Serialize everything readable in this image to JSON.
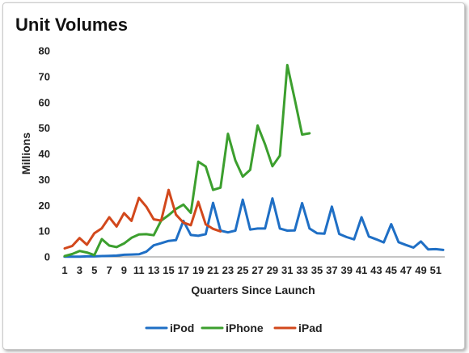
{
  "chart_data": {
    "type": "line",
    "title": "Unit Volumes",
    "xlabel": "Quarters Since Launch",
    "ylabel": "Millions",
    "ylim": [
      0,
      80
    ],
    "yticks": [
      0,
      10,
      20,
      30,
      40,
      50,
      60,
      70,
      80
    ],
    "xlim": [
      1,
      52
    ],
    "xtick_labels": [
      "1",
      "3",
      "5",
      "7",
      "9",
      "11",
      "13",
      "15",
      "17",
      "19",
      "21",
      "23",
      "25",
      "27",
      "29",
      "31",
      "33",
      "35",
      "37",
      "39",
      "41",
      "43",
      "45",
      "47",
      "49",
      "51"
    ],
    "grid": false,
    "legend_position": "bottom",
    "series": [
      {
        "name": "iPod",
        "color": "#1f6fc5",
        "x": [
          1,
          2,
          3,
          4,
          5,
          6,
          7,
          8,
          9,
          10,
          11,
          12,
          13,
          14,
          15,
          16,
          17,
          18,
          19,
          20,
          21,
          22,
          23,
          24,
          25,
          26,
          27,
          28,
          29,
          30,
          31,
          32,
          33,
          34,
          35,
          36,
          37,
          38,
          39,
          40,
          41,
          42,
          43,
          44,
          45,
          46,
          47,
          48,
          49,
          50,
          51,
          52
        ],
        "values": [
          0.1,
          0.1,
          0.1,
          0.2,
          0.2,
          0.3,
          0.4,
          0.5,
          0.8,
          0.9,
          1.0,
          2.0,
          4.5,
          5.3,
          6.2,
          6.5,
          14.0,
          8.5,
          8.2,
          8.8,
          21.0,
          10.2,
          9.5,
          10.2,
          22.2,
          10.6,
          11.0,
          11.0,
          22.7,
          11.0,
          10.2,
          10.3,
          20.9,
          11.0,
          9.2,
          9.0,
          19.5,
          8.9,
          7.7,
          6.8,
          15.4,
          7.9,
          6.8,
          5.6,
          12.7,
          5.7,
          4.6,
          3.6,
          6.0,
          2.9,
          3.0,
          2.7
        ]
      },
      {
        "name": "iPhone",
        "color": "#3c9f2e",
        "x": [
          1,
          2,
          3,
          4,
          5,
          6,
          7,
          8,
          9,
          10,
          11,
          12,
          13,
          14,
          15,
          16,
          17,
          18,
          19,
          20,
          21,
          22,
          23,
          24,
          25,
          26,
          27,
          28,
          29,
          30,
          31,
          32,
          33,
          34
        ],
        "values": [
          0.3,
          1.1,
          2.3,
          1.7,
          0.7,
          6.9,
          4.4,
          3.8,
          5.2,
          7.4,
          8.7,
          8.8,
          8.4,
          14.1,
          16.2,
          18.6,
          20.3,
          17.1,
          37.0,
          35.1,
          26.0,
          26.9,
          47.8,
          37.4,
          31.2,
          33.8,
          51.0,
          43.7,
          35.2,
          39.3,
          74.5,
          61.2,
          47.5,
          48.0
        ]
      },
      {
        "name": "iPad",
        "color": "#d2481c",
        "x": [
          1,
          2,
          3,
          4,
          5,
          6,
          7,
          8,
          9,
          10,
          11,
          12,
          13,
          14,
          15,
          16,
          17,
          18,
          19,
          20,
          21,
          22
        ],
        "values": [
          3.3,
          4.2,
          7.3,
          4.7,
          9.2,
          11.1,
          15.4,
          11.8,
          17.0,
          14.0,
          22.9,
          19.5,
          14.6,
          14.1,
          26.0,
          16.4,
          13.3,
          12.3,
          21.4,
          12.6,
          10.9,
          9.9
        ]
      }
    ]
  }
}
